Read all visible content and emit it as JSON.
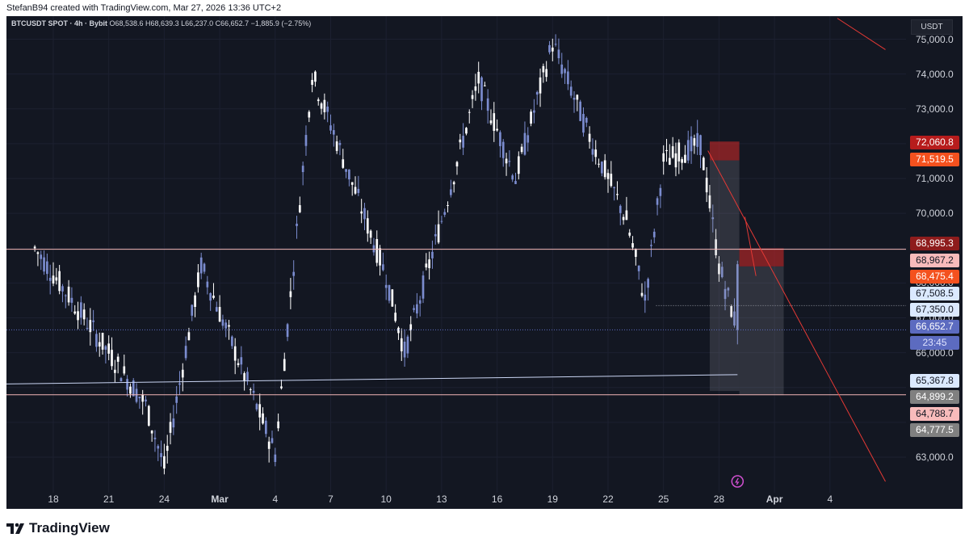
{
  "header": {
    "caption": "StefanB94 created with TradingView.com, Mar 27, 2026 13:36 UTC+2"
  },
  "legend": {
    "symbol": "BTCUSDT SPOT · 4h · Bybit",
    "ohlc": "O68,538.6 H68,639.3 L66,237.0 C66,652.7 −1,885.9 (−2.75%)"
  },
  "price_scale": {
    "currency": "USDT",
    "ticks": [
      "75,000.0",
      "74,000.0",
      "73,000.0",
      "71,000.0",
      "70,000.0",
      "68,000.0",
      "67,000.0",
      "66,000.0",
      "63,000.0"
    ]
  },
  "time_scale": {
    "labels": [
      "18",
      "21",
      "24",
      "Mar",
      "4",
      "7",
      "10",
      "13",
      "16",
      "19",
      "22",
      "25",
      "28",
      "Apr",
      "4"
    ]
  },
  "badges": [
    {
      "text": "72,060.8",
      "bg": "#b71c1c",
      "fg": "#ffffff"
    },
    {
      "text": "71,519.5",
      "bg": "#f4511e",
      "fg": "#ffffff"
    },
    {
      "text": "68,995.3",
      "bg": "#8e1c1c",
      "fg": "#ffffff"
    },
    {
      "text": "68,967.2",
      "bg": "#f8bbbb",
      "fg": "#131722"
    },
    {
      "text": "68,475.4",
      "bg": "#f4511e",
      "fg": "#ffffff"
    },
    {
      "text": "67,508.5",
      "bg": "#dbe9ff",
      "fg": "#131722"
    },
    {
      "text": "67,350.0",
      "bg": "#dbe9ff",
      "fg": "#131722"
    },
    {
      "text": "66,652.7",
      "bg": "#5c6bc0",
      "fg": "#ffffff"
    },
    {
      "text": "23:45",
      "bg": "#5c6bc0",
      "fg": "#dfe3ff"
    },
    {
      "text": "65,367.8",
      "bg": "#dbe9ff",
      "fg": "#131722"
    },
    {
      "text": "64,899.2",
      "bg": "#808080",
      "fg": "#ffffff"
    },
    {
      "text": "64,788.7",
      "bg": "#f8bbbb",
      "fg": "#131722"
    },
    {
      "text": "64,777.5",
      "bg": "#808080",
      "fg": "#ffffff"
    }
  ],
  "footer": {
    "brand": "TradingView"
  },
  "colors": {
    "background": "#131722",
    "candle_up": "#ffffff",
    "candle_down": "#7b8ccf",
    "resistance_line": "#f3b6b6",
    "support_line": "#c9d4f2",
    "trend_line": "#e53935",
    "short_zone": "#c62828"
  },
  "chart_data": {
    "type": "candlestick",
    "title": "BTCUSDT SPOT · 4h · Bybit",
    "timeframe": "4h",
    "x_labels": [
      "18",
      "21",
      "24",
      "Mar",
      "4",
      "7",
      "10",
      "13",
      "16",
      "19",
      "22",
      "25",
      "28",
      "Apr",
      "4"
    ],
    "ylim": [
      62300,
      75600
    ],
    "last_price": 66652.7,
    "swing_points": [
      {
        "date": "Feb 17",
        "price": 69000
      },
      {
        "date": "Feb 23",
        "price": 64500
      },
      {
        "date": "Feb 24",
        "price": 62700
      },
      {
        "date": "Feb 26",
        "price": 68500
      },
      {
        "date": "Mar 2",
        "price": 63100
      },
      {
        "date": "Mar 4",
        "price": 74000
      },
      {
        "date": "Mar 8",
        "price": 68200
      },
      {
        "date": "Mar 9",
        "price": 66000
      },
      {
        "date": "Mar 11",
        "price": 69800
      },
      {
        "date": "Mar 13",
        "price": 73800
      },
      {
        "date": "Mar 15",
        "price": 71000
      },
      {
        "date": "Mar 17",
        "price": 74900
      },
      {
        "date": "Mar 19",
        "price": 72200
      },
      {
        "date": "Mar 21",
        "price": 69800
      },
      {
        "date": "Mar 22",
        "price": 67500
      },
      {
        "date": "Mar 23",
        "price": 71500
      },
      {
        "date": "Mar 25",
        "price": 72000
      },
      {
        "date": "Mar 26",
        "price": 68500
      },
      {
        "date": "Mar 27",
        "price": 66650
      }
    ],
    "levels": [
      {
        "price": 68967.2,
        "style": "horizontal line"
      },
      {
        "price": 64788.7,
        "style": "horizontal line"
      },
      {
        "price": 65367.8,
        "style": "horizontal line"
      },
      {
        "price": 67350.0,
        "style": "dotted line"
      }
    ],
    "positions": [
      {
        "type": "short",
        "stop": 72060.8,
        "entry": 71519.5,
        "target": 64899.2
      },
      {
        "type": "short",
        "stop": 68995.3,
        "entry": 68475.4,
        "target": 64777.5
      }
    ],
    "trend_lines": [
      {
        "from": {
          "date": "Mar 25",
          "price": 71800
        },
        "to": {
          "date": "Apr 4",
          "price": 62300
        }
      },
      {
        "from": {
          "date": "Mar 27",
          "price": 69900
        },
        "to": {
          "date": "Mar 28",
          "price": 68200
        }
      },
      {
        "from": {
          "date": "Apr 1",
          "price": 75600
        },
        "to": {
          "date": "Apr 4",
          "price": 74700
        }
      }
    ]
  }
}
